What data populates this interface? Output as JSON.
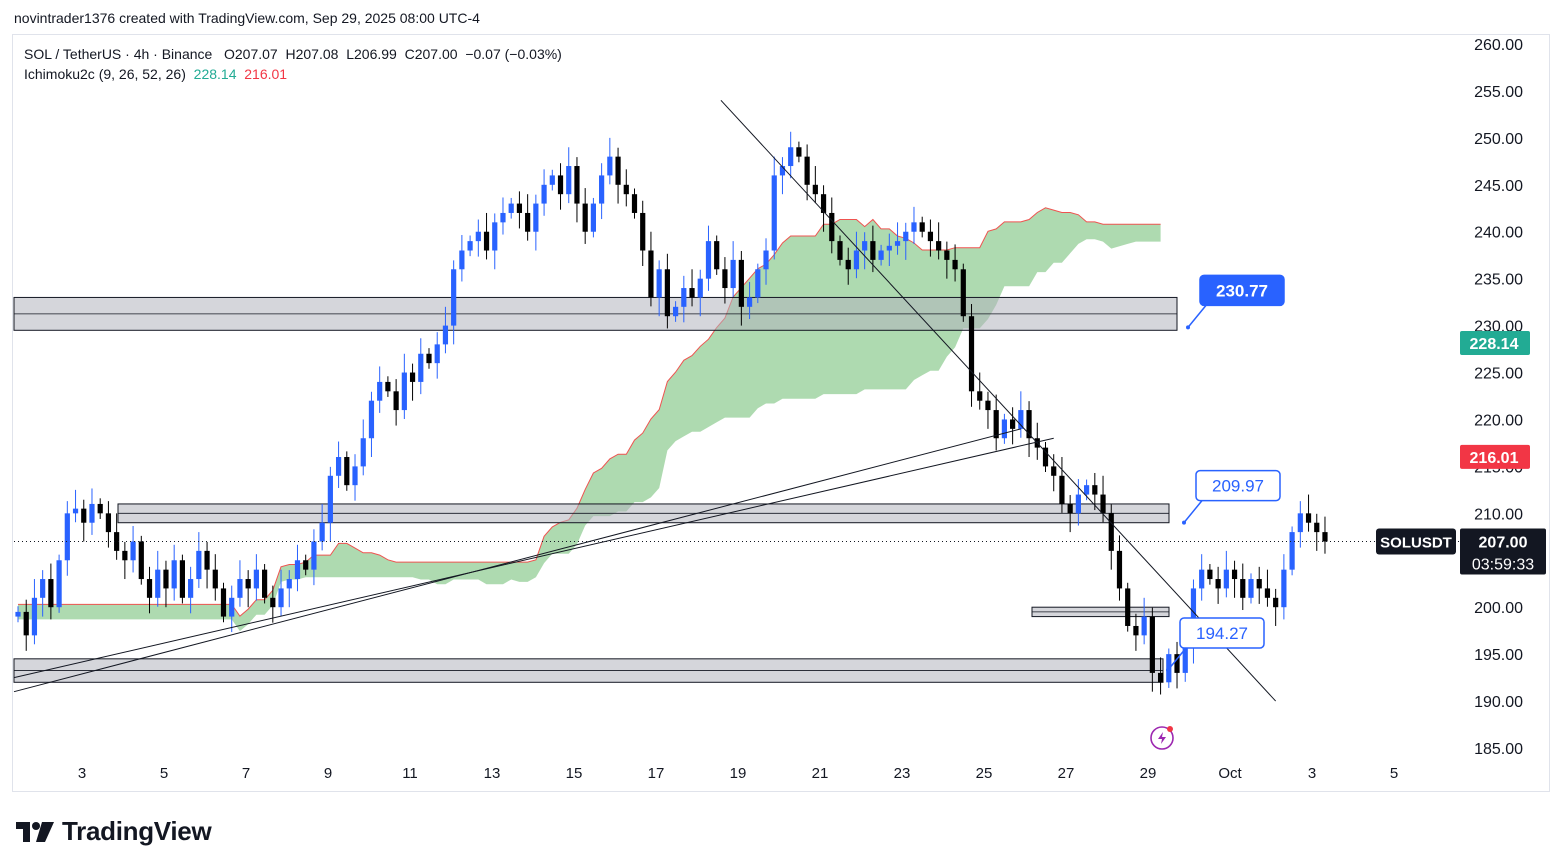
{
  "header": {
    "attribution": "novintrader1376 created with TradingView.com, Sep 29, 2025 08:00 UTC-4"
  },
  "legend": {
    "symbol_line": "SOL / TetherUS · 4h · Binance",
    "open": "O207.07",
    "high": "H207.08",
    "low": "L206.99",
    "close": "C207.00",
    "change": "−0.07 (−0.03%)",
    "indicator_name": "Ichimoku2c (9, 26, 52, 26)",
    "indicator_value_1": "228.14",
    "indicator_value_2": "216.01"
  },
  "price_scale": {
    "labels": [
      "260.00",
      "255.00",
      "250.00",
      "245.00",
      "240.00",
      "235.00",
      "230.00",
      "225.00",
      "220.00",
      "215.00",
      "210.00",
      "205.00",
      "200.00",
      "195.00",
      "190.00",
      "185.00"
    ]
  },
  "time_scale": {
    "labels": [
      "3",
      "5",
      "7",
      "9",
      "11",
      "13",
      "15",
      "17",
      "19",
      "21",
      "23",
      "25",
      "27",
      "29",
      "Oct",
      "3",
      "5"
    ]
  },
  "badges": {
    "span_a": {
      "text": "228.14",
      "color": "#22ab94"
    },
    "span_b": {
      "text": "216.01",
      "color": "#f23645"
    },
    "symbol": "SOLUSDT",
    "last_price": "207.00",
    "countdown": "03:59:33"
  },
  "callouts": [
    {
      "text": "230.77",
      "style": "filled",
      "color": "#2962ff"
    },
    {
      "text": "209.97",
      "style": "outline",
      "color": "#2962ff"
    },
    {
      "text": "194.27",
      "style": "outline",
      "color": "#2962ff"
    }
  ],
  "footer": {
    "brand": "TradingView"
  },
  "chart_data": {
    "type": "candlestick",
    "symbol": "SOL / TetherUS",
    "interval": "4h",
    "exchange": "Binance",
    "ylim": [
      185,
      260
    ],
    "x_ticks": [
      "3",
      "5",
      "7",
      "9",
      "11",
      "13",
      "15",
      "17",
      "19",
      "21",
      "23",
      "25",
      "27",
      "29",
      "Oct",
      "3",
      "5"
    ],
    "colors": {
      "up": "#2962ff",
      "down": "#000000",
      "cloud": "#a5d6a7",
      "cloud_edge": "#ef5350"
    },
    "closes": [
      199.5,
      197,
      201,
      203,
      200,
      205,
      210,
      210.5,
      209,
      211,
      210,
      208,
      206,
      205,
      207,
      203,
      201,
      204,
      202,
      205,
      201,
      203,
      206,
      204,
      202,
      199,
      201,
      203,
      202,
      204,
      201,
      200,
      202,
      203,
      205,
      204,
      207,
      209,
      214,
      216,
      213,
      215,
      218,
      222,
      224,
      223,
      221,
      225,
      224,
      227,
      226,
      228,
      230,
      236,
      238,
      239,
      240,
      238,
      241,
      242,
      243,
      242,
      240,
      243,
      245,
      246,
      244,
      247,
      243,
      240,
      243,
      246,
      248,
      245,
      244,
      242,
      238,
      233,
      236,
      231,
      232,
      234,
      233,
      235,
      239,
      236,
      234,
      237,
      232,
      233,
      236,
      238,
      246,
      247,
      249,
      248,
      245,
      244,
      242,
      239,
      237,
      236,
      238,
      239,
      237,
      238,
      238.5,
      239,
      240,
      241,
      240,
      239,
      238,
      237,
      236,
      231,
      223,
      222,
      221,
      218,
      220,
      219,
      221,
      218,
      217,
      215,
      214,
      211,
      210,
      212,
      213,
      212,
      210,
      206,
      202,
      198,
      197,
      199,
      193,
      192,
      195,
      193,
      196,
      202,
      204,
      203,
      202,
      204,
      203,
      201,
      203,
      202,
      201,
      200,
      204,
      208,
      210,
      209,
      208,
      207
    ],
    "cloud_span_a_example": 228.14,
    "cloud_span_b_example": 216.01,
    "horizontal_zones": [
      [
        229.5,
        233
      ],
      [
        209,
        211
      ],
      [
        199,
        200
      ],
      [
        192,
        194.5
      ]
    ],
    "trendlines": [
      {
        "from": [
          0,
          191
        ],
        "to": [
          122,
          219
        ]
      },
      {
        "from": [
          0,
          192.5
        ],
        "to": [
          126,
          218
        ]
      },
      {
        "from": [
          86,
          254
        ],
        "to": [
          153,
          190
        ]
      }
    ],
    "annotations": [
      {
        "label": "230.77",
        "price": 230.77
      },
      {
        "label": "209.97",
        "price": 209.97
      },
      {
        "label": "194.27",
        "price": 194.27
      }
    ],
    "last_price": 207.0
  }
}
